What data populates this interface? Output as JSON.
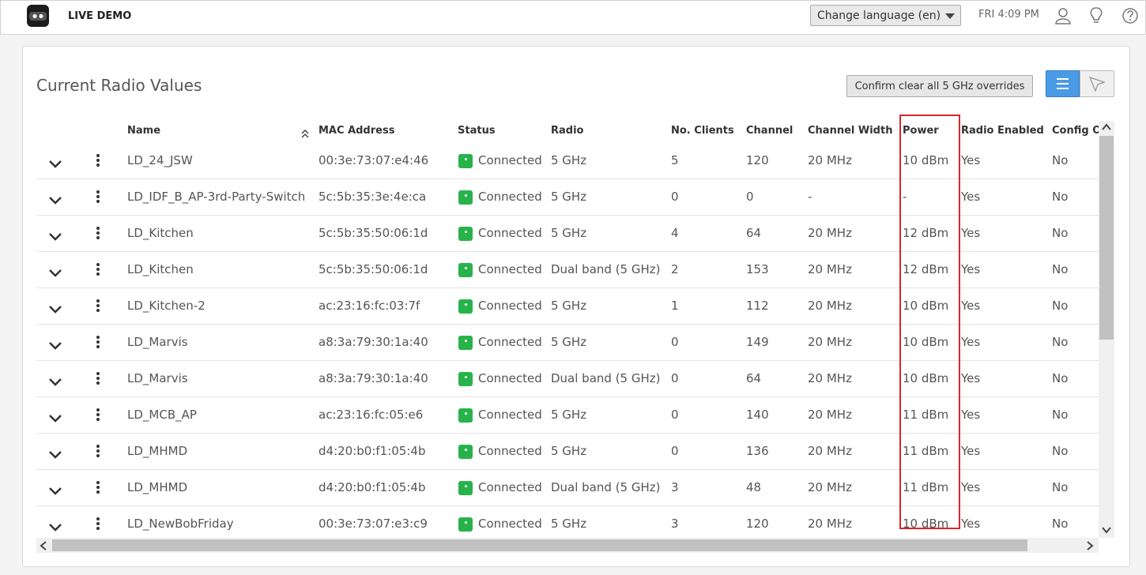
{
  "header": {
    "brand": "LIVE DEMO",
    "language": "Change language (en)",
    "clock": "FRI 4:09 PM"
  },
  "panel": {
    "title": "Current Radio Values",
    "clear_button": "Confirm clear all 5 GHz overrides"
  },
  "table": {
    "columns": [
      "Name",
      "MAC Address",
      "Status",
      "Radio",
      "No. Clients",
      "Channel",
      "Channel Width",
      "Power",
      "Radio Enabled",
      "Config Ov"
    ],
    "rows": [
      [
        "LD_24_JSW",
        "00:3e:73:07:e4:46",
        "Connected",
        "5 GHz",
        5,
        120,
        "20 MHz",
        "10 dBm",
        "Yes",
        "No"
      ],
      [
        "LD_IDF_B_AP-3rd-Party-Switch",
        "5c:5b:35:3e:4e:ca",
        "Connected",
        "5 GHz",
        0,
        0,
        "-",
        "-",
        "Yes",
        "No"
      ],
      [
        "LD_Kitchen",
        "5c:5b:35:50:06:1d",
        "Connected",
        "5 GHz",
        4,
        64,
        "20 MHz",
        "12 dBm",
        "Yes",
        "No"
      ],
      [
        "LD_Kitchen",
        "5c:5b:35:50:06:1d",
        "Connected",
        "Dual band (5 GHz)",
        2,
        153,
        "20 MHz",
        "12 dBm",
        "Yes",
        "No"
      ],
      [
        "LD_Kitchen-2",
        "ac:23:16:fc:03:7f",
        "Connected",
        "5 GHz",
        1,
        112,
        "20 MHz",
        "10 dBm",
        "Yes",
        "No"
      ],
      [
        "LD_Marvis",
        "a8:3a:79:30:1a:40",
        "Connected",
        "5 GHz",
        0,
        149,
        "20 MHz",
        "10 dBm",
        "Yes",
        "No"
      ],
      [
        "LD_Marvis",
        "a8:3a:79:30:1a:40",
        "Connected",
        "Dual band (5 GHz)",
        0,
        64,
        "20 MHz",
        "10 dBm",
        "Yes",
        "No"
      ],
      [
        "LD_MCB_AP",
        "ac:23:16:fc:05:e6",
        "Connected",
        "5 GHz",
        0,
        140,
        "20 MHz",
        "11 dBm",
        "Yes",
        "No"
      ],
      [
        "LD_MHMD",
        "d4:20:b0:f1:05:4b",
        "Connected",
        "5 GHz",
        0,
        136,
        "20 MHz",
        "11 dBm",
        "Yes",
        "No"
      ],
      [
        "LD_MHMD",
        "d4:20:b0:f1:05:4b",
        "Connected",
        "Dual band (5 GHz)",
        3,
        48,
        "20 MHz",
        "11 dBm",
        "Yes",
        "No"
      ],
      [
        "LD_NewBobFriday",
        "00:3e:73:07:e3:c9",
        "Connected",
        "5 GHz",
        3,
        120,
        "20 MHz",
        "10 dBm",
        "Yes",
        "No"
      ]
    ]
  }
}
